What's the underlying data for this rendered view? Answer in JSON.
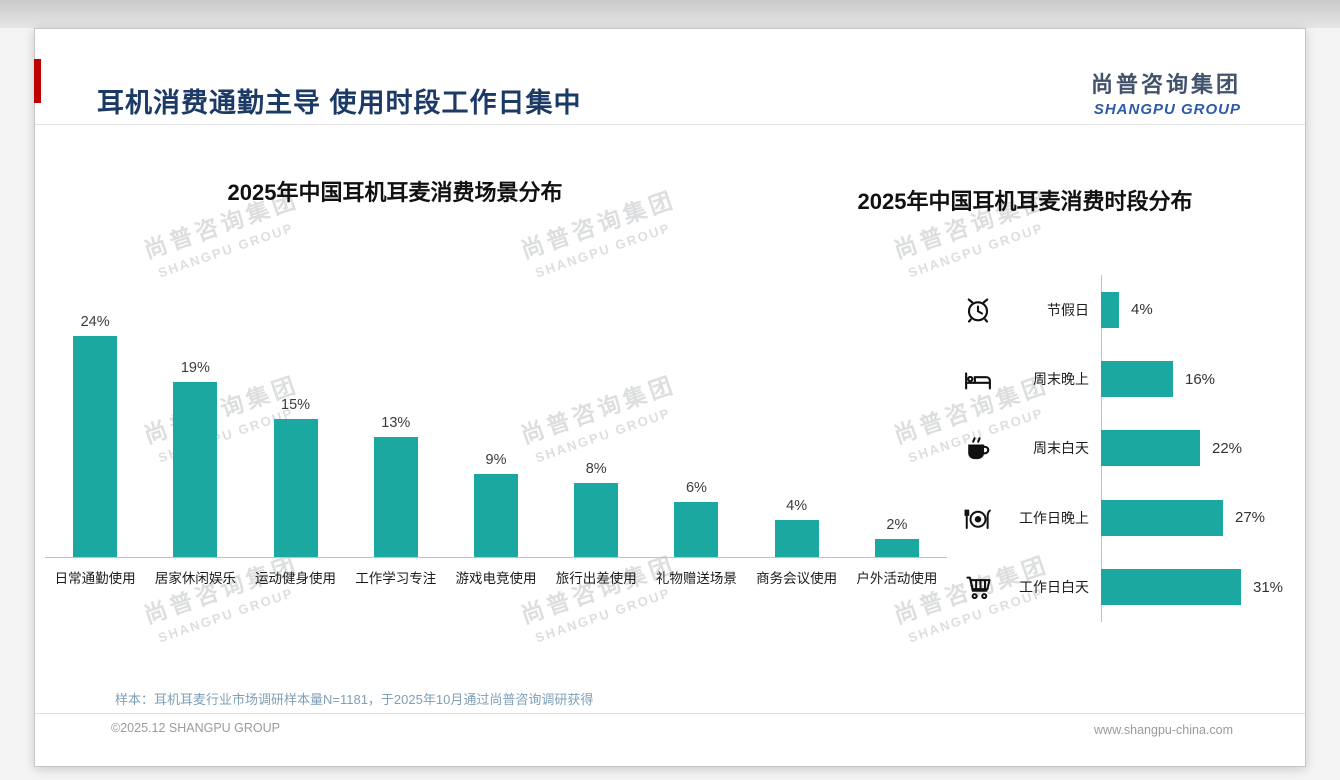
{
  "page": {
    "title": "耳机消费通勤主导 使用时段工作日集中",
    "logo": {
      "cn": "尚普咨询集团",
      "en": "SHANGPU GROUP"
    },
    "watermark": {
      "cn": "尚普咨询集团",
      "en": "SHANGPU GROUP"
    },
    "footnote": "样本：耳机耳麦行业市场调研样本量N=1181，于2025年10月通过尚普咨询调研获得",
    "footer": {
      "left": "©2025.12 SHANGPU GROUP",
      "right": "www.shangpu-china.com"
    }
  },
  "colors": {
    "bar_teal": "#1AA8A0",
    "title_navy": "#1B3A66",
    "logo_blue": "#2E5BA8",
    "accent_red": "#C00000"
  },
  "chart_data": [
    {
      "type": "bar",
      "orientation": "vertical",
      "title": "2025年中国耳机耳麦消费场景分布",
      "categories": [
        "日常通勤使用",
        "居家休闲娱乐",
        "运动健身使用",
        "工作学习专注",
        "游戏电竞使用",
        "旅行出差使用",
        "礼物赠送场景",
        "商务会议使用",
        "户外活动使用"
      ],
      "values": [
        24,
        19,
        15,
        13,
        9,
        8,
        6,
        4,
        2
      ],
      "unit": "%",
      "ylim": [
        0,
        26
      ],
      "bar_color": "#1AA8A0",
      "grid": false,
      "legend": "none"
    },
    {
      "type": "bar",
      "orientation": "horizontal",
      "title": "2025年中国耳机耳麦消费时段分布",
      "categories": [
        "节假日",
        "周末晚上",
        "周末白天",
        "工作日晚上",
        "工作日白天"
      ],
      "values": [
        4,
        16,
        22,
        27,
        31
      ],
      "icons": [
        "alarm-clock",
        "bed",
        "coffee-cup",
        "dining",
        "shopping-cart"
      ],
      "unit": "%",
      "xlim": [
        0,
        35
      ],
      "bar_color": "#1AA8A0",
      "grid": false,
      "legend": "none"
    }
  ]
}
